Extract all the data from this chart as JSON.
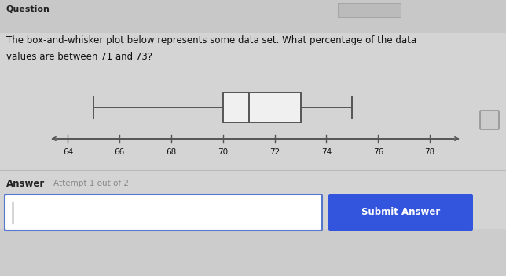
{
  "question_label": "Question",
  "title_line1": "The box-and-whisker plot below represents some data set. What percentage of the data",
  "title_line2": "values are between 71 and 73?",
  "whisker_min": 65,
  "q1": 70,
  "median": 71,
  "q3": 73,
  "whisker_max": 75,
  "axis_min": 63.5,
  "axis_max": 79,
  "tick_values": [
    64,
    66,
    68,
    70,
    72,
    74,
    76,
    78
  ],
  "tick_labels": [
    "64",
    "66",
    "68",
    "70",
    "72",
    "74",
    "76",
    "78"
  ],
  "answer_label": "Answer",
  "attempt_label": "Attempt 1 out of 2",
  "submit_label": "Submit Answer",
  "bg_color": "#cccccc",
  "panel_color": "#e0e0e0",
  "box_color": "#f0f0f0",
  "box_edge_color": "#555555",
  "line_color": "#555555",
  "button_color": "#3355dd",
  "button_text_color": "#ffffff",
  "input_border_color": "#5577cc",
  "input_fill_color": "#ffffff"
}
